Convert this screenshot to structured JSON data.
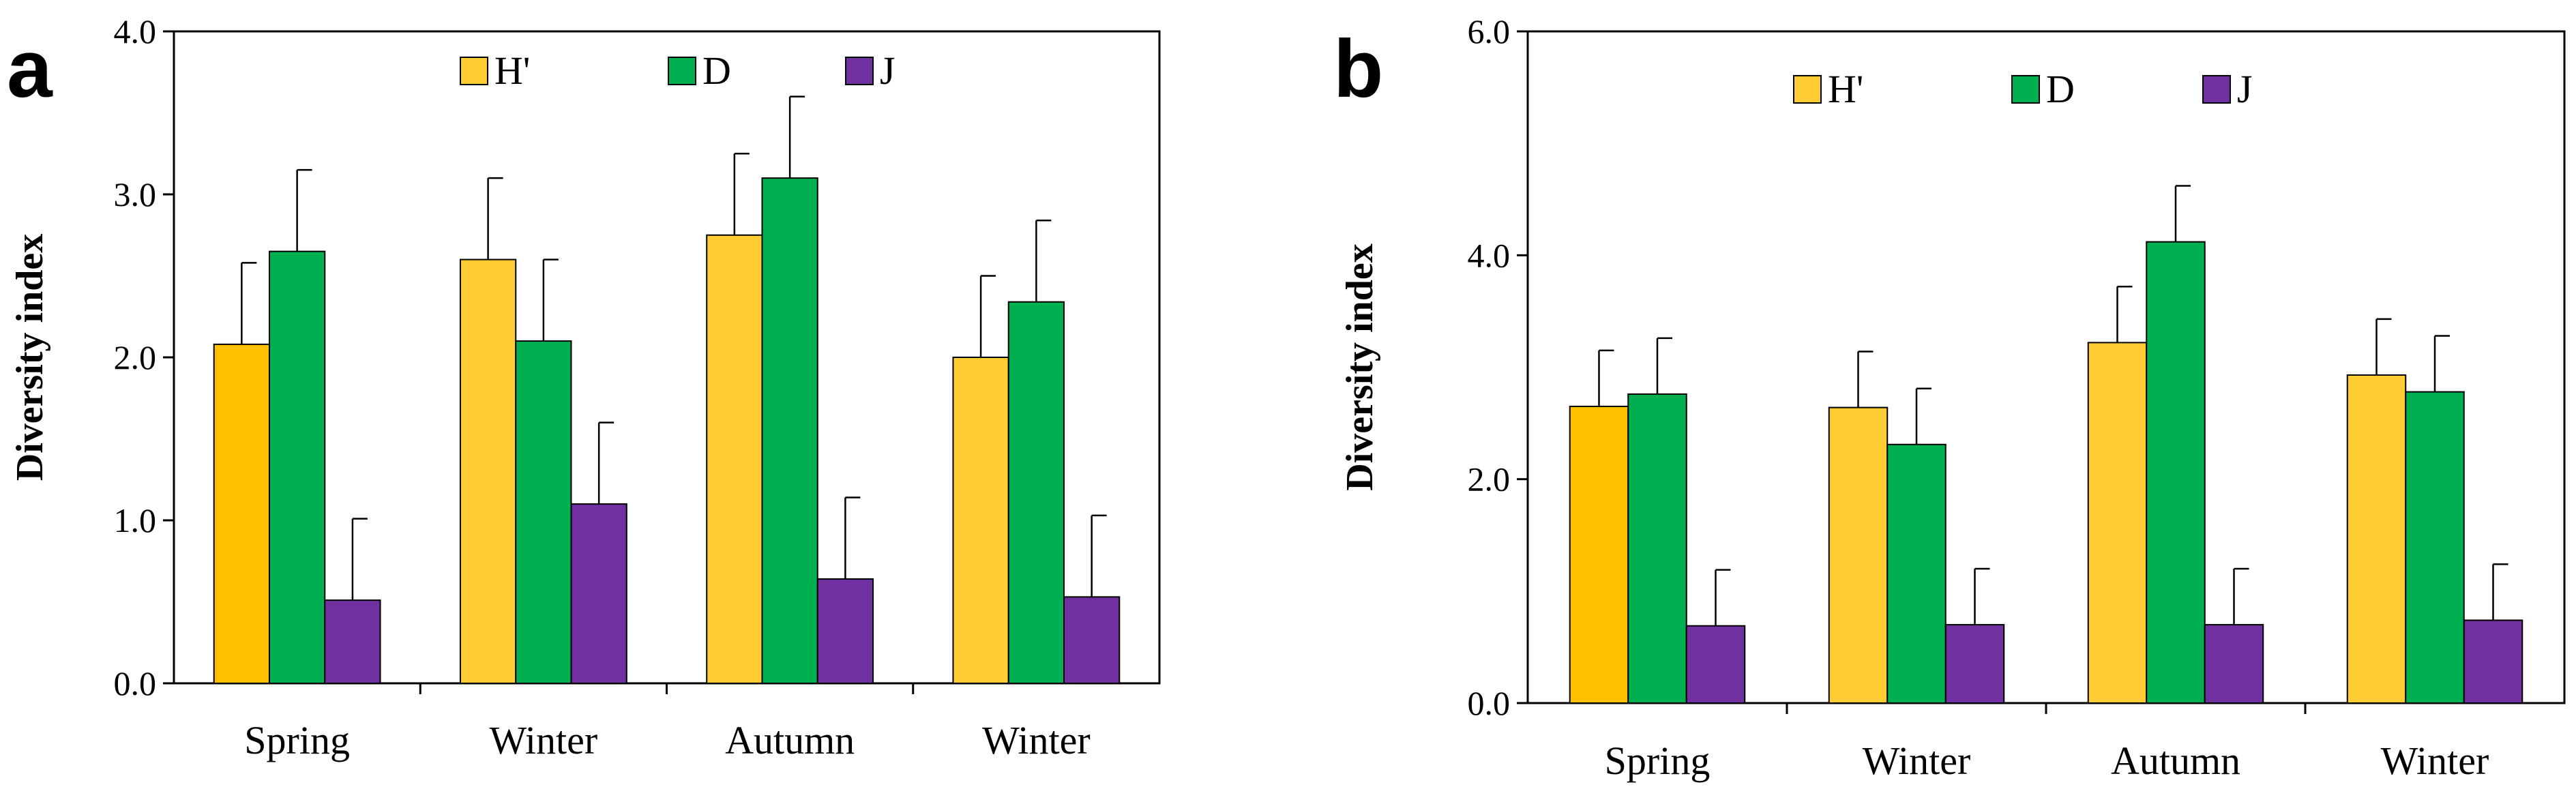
{
  "colors": {
    "H_prime_spring": "#FFC000",
    "H_prime": "#FFCC33",
    "D": "#00B050",
    "J": "#7030A0",
    "axis": "#000000"
  },
  "chart_data": [
    {
      "panel_label": "a",
      "type": "bar",
      "ylabel": "Diversity index",
      "ylim": [
        0,
        4
      ],
      "yticks": [
        "0.0",
        "1.0",
        "2.0",
        "3.0",
        "4.0"
      ],
      "ytick_values": [
        0,
        1,
        2,
        3,
        4
      ],
      "categories": [
        "Spring",
        "Winter",
        "Autumn",
        "Winter"
      ],
      "legend": [
        "H'",
        "D",
        "J"
      ],
      "series": [
        {
          "name": "H'",
          "values": [
            2.08,
            2.6,
            2.75,
            2.0
          ],
          "errors": [
            0.5,
            0.5,
            0.5,
            0.5
          ]
        },
        {
          "name": "D",
          "values": [
            2.65,
            2.1,
            3.1,
            2.34
          ],
          "errors": [
            0.5,
            0.5,
            0.5,
            0.5
          ]
        },
        {
          "name": "J",
          "values": [
            0.51,
            1.1,
            0.64,
            0.53
          ],
          "errors": [
            0.5,
            0.5,
            0.5,
            0.5
          ]
        }
      ]
    },
    {
      "panel_label": "b",
      "type": "bar",
      "ylabel": "Diversity index",
      "ylim": [
        0,
        6
      ],
      "yticks": [
        "0.0",
        "2.0",
        "4.0",
        "6.0"
      ],
      "ytick_values": [
        0,
        2,
        4,
        6
      ],
      "categories": [
        "Spring",
        "Winter",
        "Autumn",
        "Winter"
      ],
      "legend": [
        "H'",
        "D",
        "J"
      ],
      "series": [
        {
          "name": "H'",
          "values": [
            2.65,
            2.64,
            3.22,
            2.93
          ],
          "errors": [
            0.5,
            0.5,
            0.5,
            0.5
          ]
        },
        {
          "name": "D",
          "values": [
            2.76,
            2.31,
            4.12,
            2.78
          ],
          "errors": [
            0.5,
            0.5,
            0.5,
            0.5
          ]
        },
        {
          "name": "J",
          "values": [
            0.69,
            0.7,
            0.7,
            0.74
          ],
          "errors": [
            0.5,
            0.5,
            0.5,
            0.5
          ]
        }
      ]
    }
  ]
}
